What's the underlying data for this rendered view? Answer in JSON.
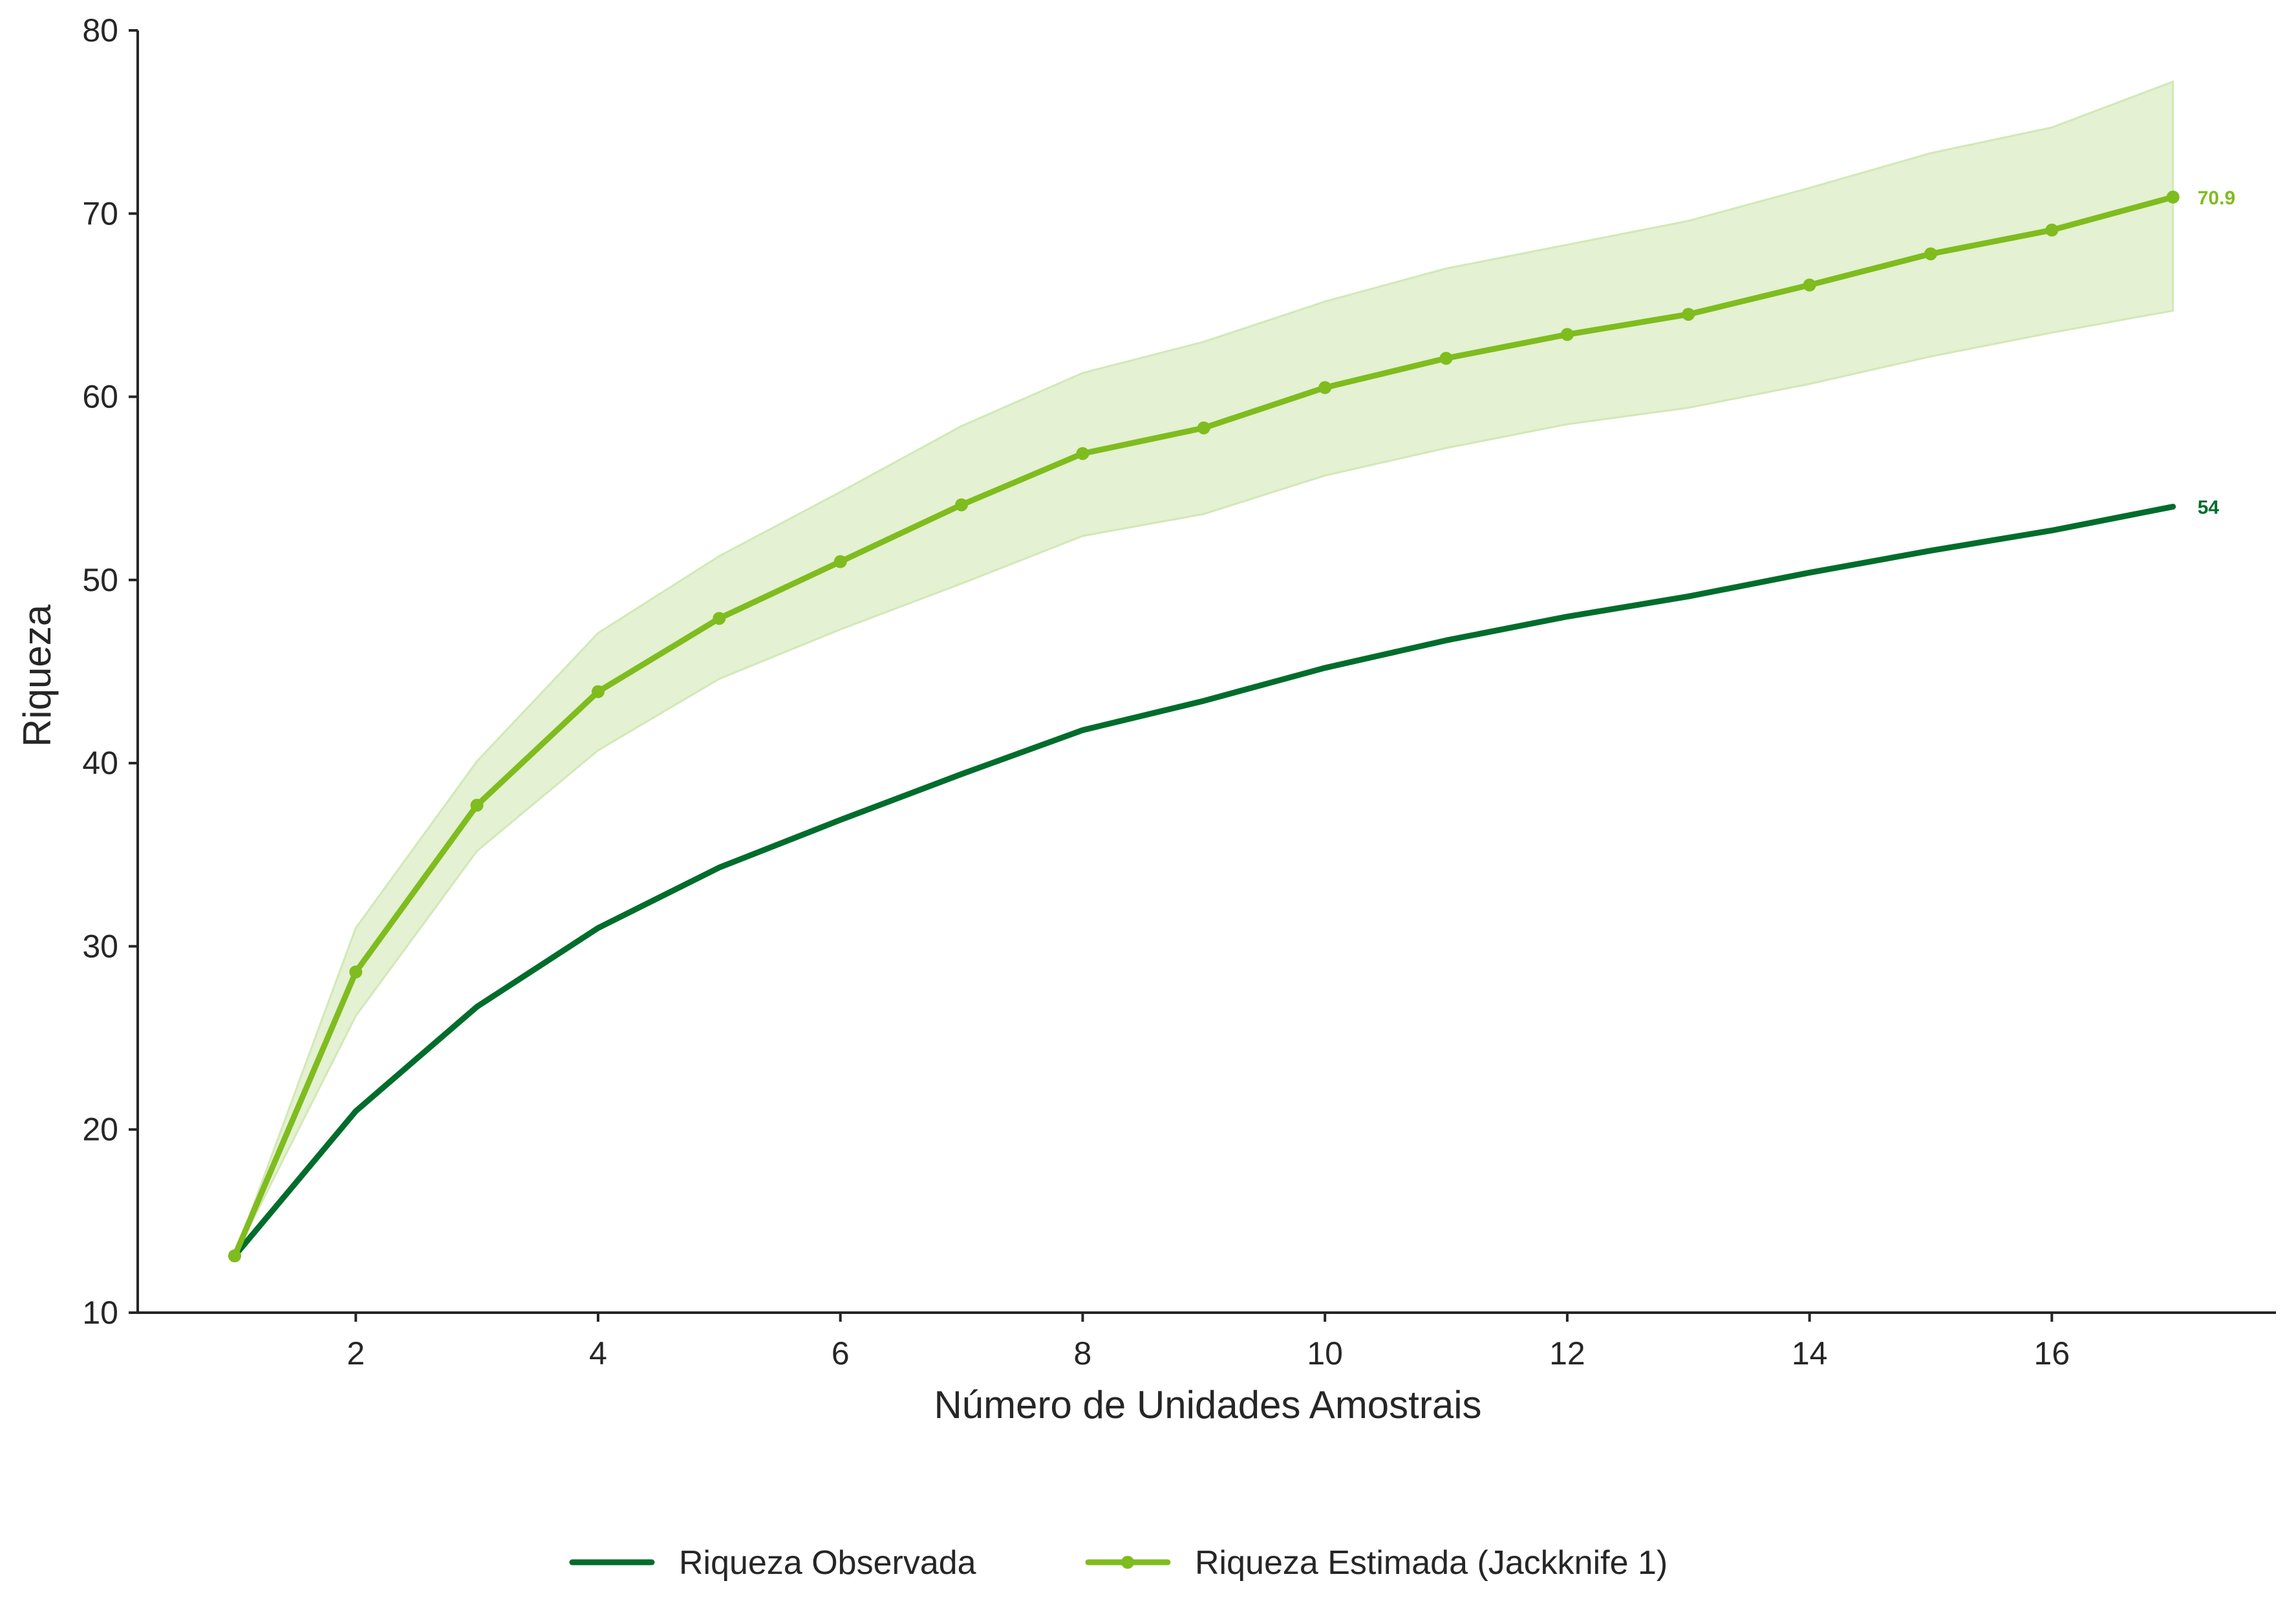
{
  "chart_data": {
    "type": "line",
    "title": "",
    "xlabel": "Número de Unidades Amostrais",
    "ylabel": "Riqueza",
    "xlim": [
      0.2,
      17.85
    ],
    "ylim": [
      10,
      80
    ],
    "xticks": [
      2,
      4,
      6,
      8,
      10,
      12,
      14,
      16
    ],
    "yticks": [
      10,
      20,
      30,
      40,
      50,
      60,
      70,
      80
    ],
    "grid": false,
    "legend_position": "bottom-center",
    "x": [
      1,
      2,
      3,
      4,
      5,
      6,
      7,
      8,
      9,
      10,
      11,
      12,
      13,
      14,
      15,
      16,
      17
    ],
    "series": [
      {
        "name": "Riqueza Observada",
        "color": "#006d2c",
        "marker": "none",
        "values": [
          13.1,
          21.0,
          26.7,
          31.0,
          34.3,
          36.9,
          39.4,
          41.8,
          43.4,
          45.2,
          46.7,
          48.0,
          49.1,
          50.4,
          51.6,
          52.7,
          54.0
        ],
        "end_label": "54"
      },
      {
        "name": "Riqueza Estimada (Jackknife 1)",
        "color": "#7fbc1e",
        "marker": "circle",
        "values": [
          13.1,
          28.6,
          37.7,
          43.9,
          47.9,
          51.0,
          54.1,
          56.9,
          58.3,
          60.5,
          62.1,
          63.4,
          64.5,
          66.1,
          67.8,
          69.1,
          70.9
        ],
        "lower": [
          13.1,
          26.2,
          35.2,
          40.7,
          44.6,
          47.3,
          49.8,
          52.4,
          53.6,
          55.7,
          57.2,
          58.5,
          59.4,
          60.7,
          62.2,
          63.5,
          64.7
        ],
        "upper": [
          13.1,
          31.0,
          40.1,
          47.1,
          51.3,
          54.8,
          58.4,
          61.3,
          63.0,
          65.2,
          67.0,
          68.3,
          69.6,
          71.4,
          73.3,
          74.7,
          77.2
        ],
        "end_label": "70.9",
        "band_fill": "#e4f1d2",
        "band_edge": "#d2e8b6"
      }
    ]
  }
}
